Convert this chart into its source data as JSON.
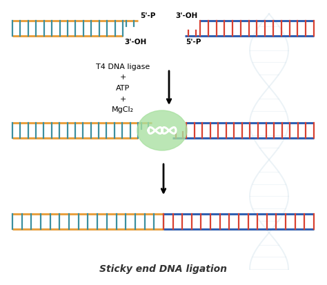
{
  "title": "Sticky end DNA ligation",
  "title_fontsize": 10,
  "bg_color": "#ffffff",
  "teal_color": "#3a8f9f",
  "orange_color": "#e8a040",
  "red_color": "#d94030",
  "blue_color": "#3060b0",
  "green_blob_color": "#a8e0a0",
  "ligase_text": "T4 DNA ligase\n+\nATP\n+\nMgCl₂",
  "label_5p_tl": "5'-P",
  "label_3oh_tl": "3'-OH",
  "label_3oh_tr": "3'-OH",
  "label_5p_tr": "5'-P",
  "fig_width": 4.74,
  "fig_height": 4.13,
  "dpi": 100,
  "lw_rail": 2.2,
  "lw_rung": 1.6,
  "helix_color": "#c8dce8",
  "helix_alpha": 0.35
}
